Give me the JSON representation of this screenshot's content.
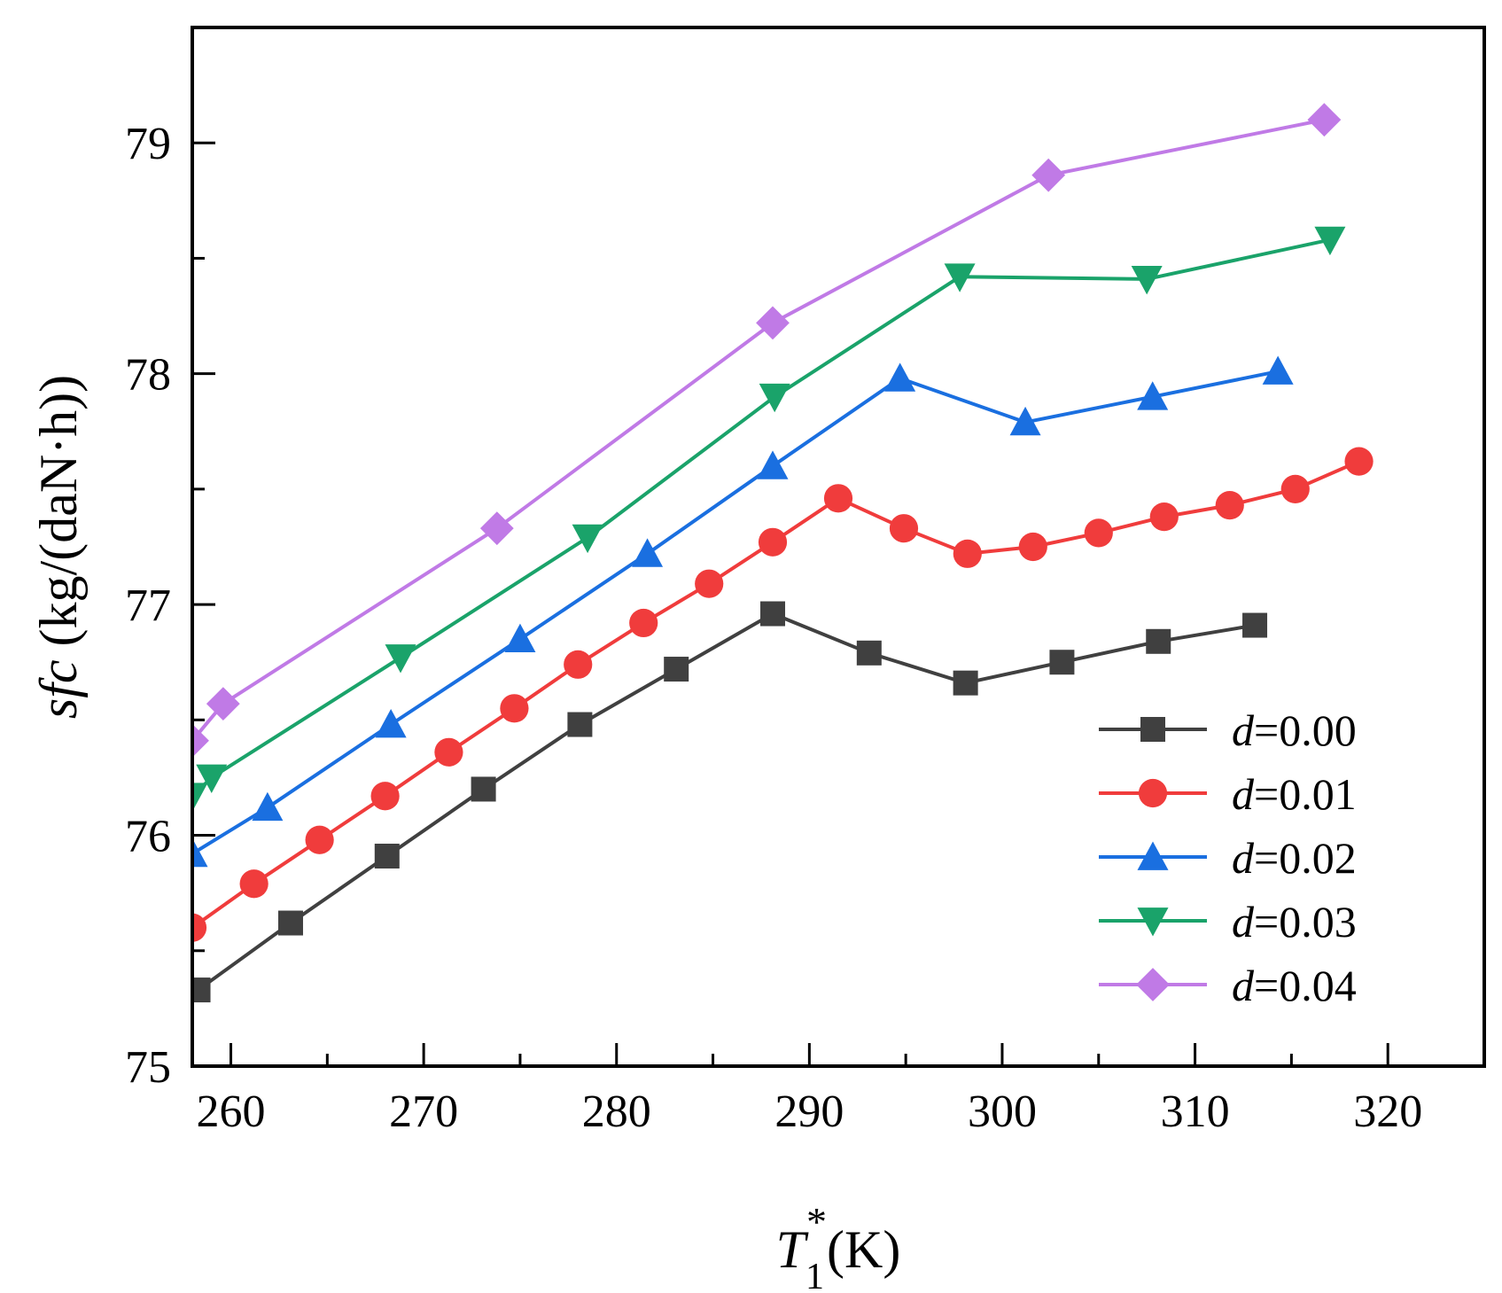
{
  "chart_data": {
    "type": "line",
    "title": "",
    "xlabel": {
      "symbol": "T",
      "subscript": "1",
      "superscript": "*",
      "unit": "(K)"
    },
    "ylabel": {
      "symbol": "sfc",
      "unit": " (kg/(daN·h))"
    },
    "xlim": [
      258,
      325
    ],
    "ylim": [
      75,
      79.5
    ],
    "x_ticks": [
      260,
      270,
      280,
      290,
      300,
      310,
      320
    ],
    "x_tick_labels": [
      "260",
      "270",
      "280",
      "290",
      "300",
      "310",
      "320"
    ],
    "y_ticks": [
      75,
      76,
      77,
      78,
      79
    ],
    "y_tick_labels": [
      "75",
      "76",
      "77",
      "78",
      "79"
    ],
    "legend_position": "bottom-right",
    "series": [
      {
        "name": "d=0.00",
        "var": "d",
        "value_label": "=0.00",
        "color": "#404040",
        "marker": "square",
        "x": [
          258.3,
          263.1,
          268.1,
          273.1,
          278.1,
          283.1,
          288.1,
          293.1,
          298.1,
          303.1,
          308.1,
          313.1
        ],
        "y": [
          75.33,
          75.62,
          75.91,
          76.2,
          76.48,
          76.72,
          76.96,
          76.79,
          76.66,
          76.75,
          76.84,
          76.91
        ]
      },
      {
        "name": "d=0.01",
        "var": "d",
        "value_label": "=0.01",
        "color": "#f03c3c",
        "marker": "circle",
        "x": [
          258.0,
          261.2,
          264.6,
          268.0,
          271.3,
          274.7,
          278.0,
          281.4,
          284.8,
          288.1,
          291.5,
          294.9,
          298.2,
          301.6,
          305.0,
          308.4,
          311.8,
          315.2,
          318.5
        ],
        "y": [
          75.6,
          75.79,
          75.98,
          76.17,
          76.36,
          76.55,
          76.74,
          76.92,
          77.09,
          77.27,
          77.46,
          77.33,
          77.22,
          77.25,
          77.31,
          77.38,
          77.43,
          77.5,
          77.62
        ]
      },
      {
        "name": "d=0.02",
        "var": "d",
        "value_label": "=0.02",
        "color": "#1a6fe0",
        "marker": "triangle-up",
        "x": [
          258.0,
          261.9,
          268.3,
          275.0,
          281.6,
          288.1,
          294.7,
          301.2,
          307.8,
          314.3
        ],
        "y": [
          75.92,
          76.12,
          76.48,
          76.85,
          77.22,
          77.6,
          77.98,
          77.79,
          77.9,
          78.01
        ]
      },
      {
        "name": "d=0.03",
        "var": "d",
        "value_label": "=0.03",
        "color": "#1aa36a",
        "marker": "triangle-down",
        "x": [
          258.0,
          259.0,
          268.8,
          278.5,
          288.2,
          297.8,
          307.5,
          317.0
        ],
        "y": [
          76.17,
          76.25,
          76.77,
          77.29,
          77.9,
          78.42,
          78.41,
          78.58
        ]
      },
      {
        "name": "d=0.04",
        "var": "d",
        "value_label": "=0.04",
        "color": "#c07ae6",
        "marker": "diamond",
        "x": [
          258.0,
          259.6,
          273.8,
          288.1,
          302.4,
          316.7
        ],
        "y": [
          76.41,
          76.57,
          77.33,
          78.22,
          78.86,
          79.1
        ]
      }
    ]
  }
}
